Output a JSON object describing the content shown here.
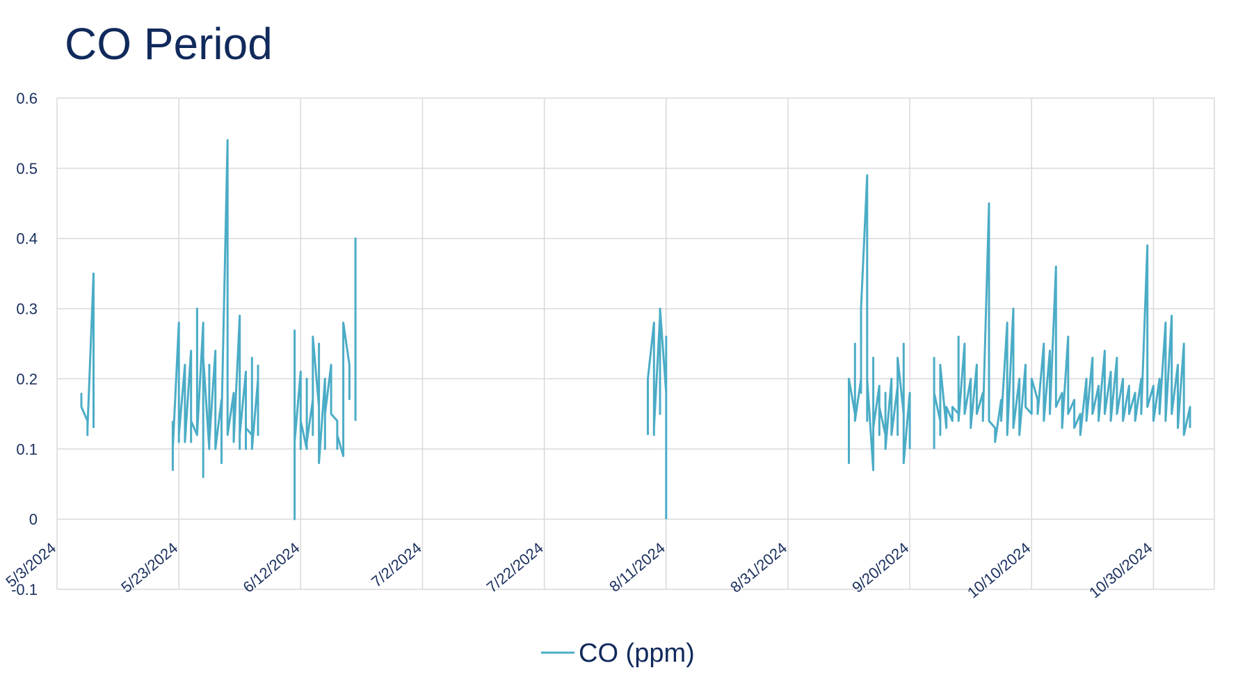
{
  "chart_data": {
    "type": "line",
    "title": "CO Period",
    "xlabel": "",
    "ylabel": "",
    "x_range": [
      "5/3/2024",
      "11/9/2024"
    ],
    "ylim": [
      -0.1,
      0.6
    ],
    "y_ticks": [
      "-0.1",
      "0",
      "0.1",
      "0.2",
      "0.3",
      "0.4",
      "0.5",
      "0.6"
    ],
    "x_ticks": [
      "5/3/2024",
      "5/23/2024",
      "6/12/2024",
      "7/2/2024",
      "7/22/2024",
      "8/11/2024",
      "8/31/2024",
      "9/20/2024",
      "10/10/2024",
      "10/30/2024"
    ],
    "grid": true,
    "legend_position": "bottom",
    "colors": {
      "series": "#4bacc6",
      "grid": "#d9d9d9",
      "text": "#112a5c"
    },
    "series": [
      {
        "name": "CO (ppm)",
        "segments": [
          [
            [
              "5/7/2024",
              0.18
            ],
            [
              "5/7/2024",
              0.16
            ],
            [
              "5/8/2024",
              0.14
            ],
            [
              "5/8/2024",
              0.12
            ],
            [
              "5/8/2024",
              0.13
            ],
            [
              "5/9/2024",
              0.35
            ],
            [
              "5/9/2024",
              0.14
            ],
            [
              "5/9/2024",
              0.13
            ]
          ],
          [
            [
              "5/22/2024",
              0.14
            ],
            [
              "5/22/2024",
              0.07
            ],
            [
              "5/22/2024",
              0.13
            ],
            [
              "5/22/2024",
              0.1
            ],
            [
              "5/23/2024",
              0.28
            ],
            [
              "5/23/2024",
              0.11
            ],
            [
              "5/23/2024",
              0.15
            ],
            [
              "5/23/2024",
              0.12
            ],
            [
              "5/24/2024",
              0.22
            ],
            [
              "5/24/2024",
              0.12
            ],
            [
              "5/24/2024",
              0.14
            ],
            [
              "5/24/2024",
              0.11
            ],
            [
              "5/25/2024",
              0.24
            ],
            [
              "5/25/2024",
              0.11
            ],
            [
              "5/25/2024",
              0.14
            ],
            [
              "5/26/2024",
              0.12
            ],
            [
              "5/26/2024",
              0.3
            ],
            [
              "5/26/2024",
              0.12
            ],
            [
              "5/27/2024",
              0.28
            ],
            [
              "5/27/2024",
              0.06
            ],
            [
              "5/27/2024",
              0.23
            ],
            [
              "5/28/2024",
              0.1
            ],
            [
              "5/28/2024",
              0.22
            ],
            [
              "5/28/2024",
              0.11
            ],
            [
              "5/29/2024",
              0.24
            ],
            [
              "5/29/2024",
              0.1
            ],
            [
              "5/30/2024",
              0.17
            ],
            [
              "5/30/2024",
              0.08
            ],
            [
              "5/30/2024",
              0.14
            ],
            [
              "5/31/2024",
              0.54
            ],
            [
              "5/31/2024",
              0.13
            ],
            [
              "5/31/2024",
              0.12
            ],
            [
              "6/1/2024",
              0.18
            ],
            [
              "6/1/2024",
              0.13
            ],
            [
              "6/1/2024",
              0.11
            ],
            [
              "6/2/2024",
              0.29
            ],
            [
              "6/2/2024",
              0.1
            ],
            [
              "6/2/2024",
              0.12
            ],
            [
              "6/3/2024",
              0.21
            ],
            [
              "6/3/2024",
              0.1
            ],
            [
              "6/3/2024",
              0.13
            ],
            [
              "6/4/2024",
              0.12
            ],
            [
              "6/4/2024",
              0.23
            ],
            [
              "6/4/2024",
              0.1
            ],
            [
              "6/5/2024",
              0.2
            ],
            [
              "6/5/2024",
              0.12
            ],
            [
              "6/5/2024",
              0.22
            ]
          ],
          [
            [
              "6/11/2024",
              0.27
            ],
            [
              "6/11/2024",
              0.0
            ],
            [
              "6/11/2024",
              0.13
            ],
            [
              "6/11/2024",
              0.11
            ],
            [
              "6/12/2024",
              0.21
            ],
            [
              "6/12/2024",
              0.1
            ],
            [
              "6/12/2024",
              0.14
            ],
            [
              "6/13/2024",
              0.1
            ],
            [
              "6/13/2024",
              0.2
            ],
            [
              "6/13/2024",
              0.11
            ],
            [
              "6/14/2024",
              0.17
            ],
            [
              "6/14/2024",
              0.12
            ],
            [
              "6/14/2024",
              0.26
            ],
            [
              "6/15/2024",
              0.16
            ],
            [
              "6/15/2024",
              0.25
            ],
            [
              "6/15/2024",
              0.08
            ],
            [
              "6/16/2024",
              0.2
            ],
            [
              "6/16/2024",
              0.1
            ],
            [
              "6/16/2024",
              0.15
            ],
            [
              "6/17/2024",
              0.22
            ],
            [
              "6/17/2024",
              0.15
            ],
            [
              "6/18/2024",
              0.14
            ],
            [
              "6/18/2024",
              0.1
            ],
            [
              "6/18/2024",
              0.12
            ],
            [
              "6/19/2024",
              0.09
            ],
            [
              "6/19/2024",
              0.14
            ],
            [
              "6/19/2024",
              0.28
            ],
            [
              "6/20/2024",
              0.22
            ],
            [
              "6/20/2024",
              0.17
            ]
          ],
          [
            [
              "6/21/2024",
              0.14
            ],
            [
              "6/21/2024",
              0.16
            ],
            [
              "6/21/2024",
              0.4
            ],
            [
              "6/21/2024",
              0.17
            ]
          ],
          [
            [
              "8/8/2024",
              0.12
            ],
            [
              "8/8/2024",
              0.2
            ],
            [
              "8/9/2024",
              0.28
            ],
            [
              "8/9/2024",
              0.12
            ],
            [
              "8/9/2024",
              0.2
            ],
            [
              "8/9/2024",
              0.13
            ],
            [
              "8/10/2024",
              0.29
            ],
            [
              "8/10/2024",
              0.15
            ],
            [
              "8/10/2024",
              0.22
            ],
            [
              "8/10/2024",
              0.3
            ],
            [
              "8/11/2024",
              0.18
            ],
            [
              "8/11/2024",
              0.26
            ],
            [
              "8/11/2024",
              0.1
            ],
            [
              "8/11/2024",
              0.16
            ],
            [
              "8/11/2024",
              0.0
            ]
          ],
          [
            [
              "9/10/2024",
              0.1
            ],
            [
              "9/10/2024",
              0.08
            ],
            [
              "9/10/2024",
              0.2
            ],
            [
              "9/11/2024",
              0.15
            ],
            [
              "9/11/2024",
              0.25
            ],
            [
              "9/11/2024",
              0.14
            ],
            [
              "9/12/2024",
              0.2
            ],
            [
              "9/12/2024",
              0.18
            ],
            [
              "9/12/2024",
              0.3
            ],
            [
              "9/13/2024",
              0.49
            ],
            [
              "9/13/2024",
              0.14
            ],
            [
              "9/13/2024",
              0.2
            ],
            [
              "9/14/2024",
              0.07
            ],
            [
              "9/14/2024",
              0.23
            ],
            [
              "9/14/2024",
              0.13
            ],
            [
              "9/15/2024",
              0.19
            ],
            [
              "9/15/2024",
              0.12
            ],
            [
              "9/15/2024",
              0.16
            ],
            [
              "9/16/2024",
              0.12
            ],
            [
              "9/16/2024",
              0.18
            ],
            [
              "9/16/2024",
              0.1
            ],
            [
              "9/17/2024",
              0.2
            ],
            [
              "9/17/2024",
              0.14
            ],
            [
              "9/17/2024",
              0.12
            ],
            [
              "9/18/2024",
              0.19
            ],
            [
              "9/18/2024",
              0.12
            ],
            [
              "9/18/2024",
              0.23
            ],
            [
              "9/19/2024",
              0.15
            ],
            [
              "9/19/2024",
              0.25
            ],
            [
              "9/19/2024",
              0.08
            ],
            [
              "9/20/2024",
              0.18
            ],
            [
              "9/20/2024",
              0.1
            ]
          ],
          [
            [
              "9/24/2024",
              0.1
            ],
            [
              "9/24/2024",
              0.23
            ],
            [
              "9/24/2024",
              0.18
            ],
            [
              "9/25/2024",
              0.14
            ],
            [
              "9/25/2024",
              0.12
            ],
            [
              "9/25/2024",
              0.22
            ],
            [
              "9/26/2024",
              0.13
            ],
            [
              "9/26/2024",
              0.16
            ],
            [
              "9/27/2024",
              0.14
            ],
            [
              "9/27/2024",
              0.16
            ],
            [
              "9/28/2024",
              0.15
            ],
            [
              "9/28/2024",
              0.26
            ],
            [
              "9/28/2024",
              0.14
            ],
            [
              "9/29/2024",
              0.25
            ],
            [
              "9/29/2024",
              0.15
            ],
            [
              "9/30/2024",
              0.2
            ],
            [
              "9/30/2024",
              0.13
            ],
            [
              "10/1/2024",
              0.22
            ],
            [
              "10/1/2024",
              0.15
            ],
            [
              "10/2/2024",
              0.18
            ],
            [
              "10/2/2024",
              0.14
            ],
            [
              "10/3/2024",
              0.45
            ],
            [
              "10/3/2024",
              0.14
            ],
            [
              "10/4/2024",
              0.13
            ],
            [
              "10/4/2024",
              0.11
            ],
            [
              "10/5/2024",
              0.17
            ],
            [
              "10/5/2024",
              0.14
            ],
            [
              "10/6/2024",
              0.28
            ],
            [
              "10/6/2024",
              0.12
            ],
            [
              "10/7/2024",
              0.3
            ],
            [
              "10/7/2024",
              0.13
            ],
            [
              "10/8/2024",
              0.2
            ],
            [
              "10/8/2024",
              0.12
            ],
            [
              "10/9/2024",
              0.22
            ],
            [
              "10/9/2024",
              0.16
            ],
            [
              "10/10/2024",
              0.15
            ],
            [
              "10/10/2024",
              0.2
            ],
            [
              "10/11/2024",
              0.17
            ],
            [
              "10/11/2024",
              0.15
            ],
            [
              "10/12/2024",
              0.25
            ],
            [
              "10/12/2024",
              0.14
            ],
            [
              "10/13/2024",
              0.24
            ],
            [
              "10/13/2024",
              0.15
            ],
            [
              "10/14/2024",
              0.36
            ],
            [
              "10/14/2024",
              0.16
            ],
            [
              "10/15/2024",
              0.18
            ],
            [
              "10/15/2024",
              0.13
            ],
            [
              "10/16/2024",
              0.26
            ],
            [
              "10/16/2024",
              0.15
            ],
            [
              "10/17/2024",
              0.17
            ],
            [
              "10/17/2024",
              0.13
            ],
            [
              "10/18/2024",
              0.15
            ],
            [
              "10/18/2024",
              0.12
            ],
            [
              "10/19/2024",
              0.2
            ],
            [
              "10/19/2024",
              0.14
            ],
            [
              "10/20/2024",
              0.23
            ],
            [
              "10/20/2024",
              0.15
            ],
            [
              "10/21/2024",
              0.19
            ],
            [
              "10/21/2024",
              0.14
            ],
            [
              "10/22/2024",
              0.24
            ],
            [
              "10/22/2024",
              0.15
            ],
            [
              "10/23/2024",
              0.21
            ],
            [
              "10/23/2024",
              0.14
            ],
            [
              "10/24/2024",
              0.23
            ],
            [
              "10/24/2024",
              0.15
            ],
            [
              "10/25/2024",
              0.2
            ],
            [
              "10/25/2024",
              0.14
            ],
            [
              "10/26/2024",
              0.19
            ],
            [
              "10/26/2024",
              0.15
            ],
            [
              "10/27/2024",
              0.18
            ],
            [
              "10/27/2024",
              0.14
            ],
            [
              "10/28/2024",
              0.2
            ],
            [
              "10/28/2024",
              0.15
            ],
            [
              "10/29/2024",
              0.39
            ],
            [
              "10/29/2024",
              0.16
            ],
            [
              "10/30/2024",
              0.19
            ],
            [
              "10/30/2024",
              0.14
            ],
            [
              "10/31/2024",
              0.2
            ],
            [
              "10/31/2024",
              0.15
            ],
            [
              "11/1/2024",
              0.28
            ],
            [
              "11/1/2024",
              0.14
            ],
            [
              "11/2/2024",
              0.29
            ],
            [
              "11/2/2024",
              0.15
            ],
            [
              "11/3/2024",
              0.22
            ],
            [
              "11/3/2024",
              0.13
            ],
            [
              "11/4/2024",
              0.25
            ],
            [
              "11/4/2024",
              0.12
            ],
            [
              "11/5/2024",
              0.16
            ],
            [
              "11/5/2024",
              0.13
            ]
          ]
        ]
      }
    ]
  }
}
